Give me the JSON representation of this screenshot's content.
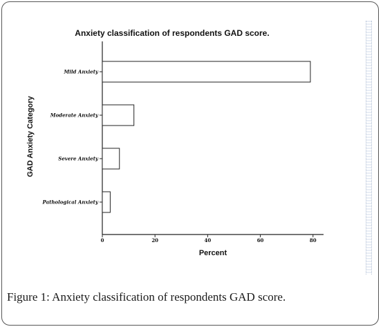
{
  "chart_data": {
    "type": "bar",
    "orientation": "horizontal",
    "title": "Anxiety classification of respondents GAD score.",
    "xlabel": "Percent",
    "ylabel": "GAD Anxiety Category",
    "categories": [
      "Mild Anxiety",
      "Moderate Anxiety",
      "Severe Anxiety",
      "Pathological Anxiety"
    ],
    "values": [
      79,
      12,
      6.5,
      3
    ],
    "xlim": [
      0,
      84
    ],
    "xticks": [
      "0",
      "20",
      "40",
      "60",
      "80"
    ],
    "grid": false,
    "legend": "none",
    "bar_fill": "#ffffff",
    "bar_stroke": "#222222"
  },
  "caption": {
    "label": "Figure 1:",
    "text": " Anxiety classification of respondents GAD score."
  }
}
